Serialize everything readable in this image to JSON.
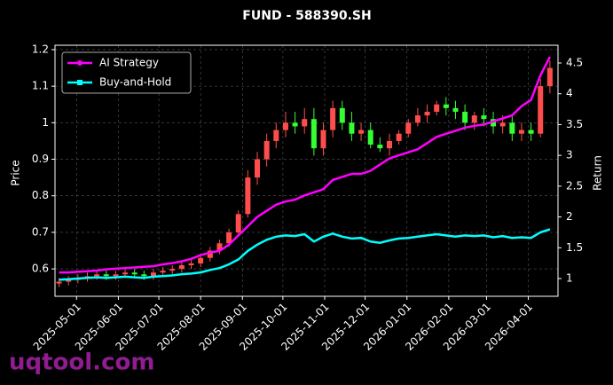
{
  "chart_data": {
    "type": "candlestick",
    "title": "FUND - 588390.SH",
    "ylabel": "Price",
    "y2label": "Return",
    "watermark": "uqtool.com",
    "x": [
      "2025-04-18",
      "2025-04-25",
      "2025-05-02",
      "2025-05-09",
      "2025-05-16",
      "2025-05-23",
      "2025-05-30",
      "2025-06-06",
      "2025-06-13",
      "2025-06-20",
      "2025-06-27",
      "2025-07-04",
      "2025-07-11",
      "2025-07-18",
      "2025-07-25",
      "2025-08-01",
      "2025-08-08",
      "2025-08-15",
      "2025-08-22",
      "2025-08-29",
      "2025-09-05",
      "2025-09-12",
      "2025-09-19",
      "2025-09-26",
      "2025-10-03",
      "2025-10-10",
      "2025-10-17",
      "2025-10-24",
      "2025-10-31",
      "2025-11-07",
      "2025-11-14",
      "2025-11-21",
      "2025-11-28",
      "2025-12-05",
      "2025-12-12",
      "2025-12-19",
      "2025-12-26",
      "2026-01-02",
      "2026-01-09",
      "2026-01-16",
      "2026-01-23",
      "2026-01-30",
      "2026-02-06",
      "2026-02-13",
      "2026-02-20",
      "2026-02-27",
      "2026-03-06",
      "2026-03-13",
      "2026-03-20",
      "2026-03-27",
      "2026-04-03",
      "2026-04-10",
      "2026-04-17"
    ],
    "open": [
      0.56,
      0.565,
      0.57,
      0.575,
      0.58,
      0.585,
      0.58,
      0.585,
      0.59,
      0.585,
      0.58,
      0.59,
      0.595,
      0.6,
      0.61,
      0.615,
      0.63,
      0.65,
      0.67,
      0.7,
      0.75,
      0.85,
      0.9,
      0.95,
      0.98,
      1.0,
      0.99,
      1.01,
      0.93,
      0.98,
      1.04,
      1.0,
      0.97,
      0.98,
      0.94,
      0.93,
      0.95,
      0.97,
      1.0,
      1.02,
      1.03,
      1.05,
      1.04,
      1.03,
      1.0,
      1.02,
      1.01,
      0.99,
      1.0,
      0.97,
      0.98,
      0.97,
      1.1
    ],
    "high": [
      0.575,
      0.58,
      0.585,
      0.59,
      0.595,
      0.595,
      0.595,
      0.6,
      0.6,
      0.595,
      0.6,
      0.605,
      0.61,
      0.62,
      0.625,
      0.64,
      0.66,
      0.68,
      0.71,
      0.76,
      0.87,
      0.92,
      0.97,
      1.0,
      1.03,
      1.03,
      1.04,
      1.04,
      1.0,
      1.06,
      1.06,
      1.03,
      1.0,
      1.0,
      0.96,
      0.97,
      0.98,
      1.01,
      1.04,
      1.05,
      1.06,
      1.07,
      1.06,
      1.05,
      1.03,
      1.04,
      1.03,
      1.02,
      1.02,
      1.0,
      1.0,
      1.12,
      1.17
    ],
    "low": [
      0.55,
      0.555,
      0.56,
      0.565,
      0.57,
      0.57,
      0.57,
      0.575,
      0.575,
      0.57,
      0.57,
      0.58,
      0.585,
      0.59,
      0.6,
      0.605,
      0.62,
      0.64,
      0.66,
      0.69,
      0.74,
      0.83,
      0.88,
      0.93,
      0.96,
      0.97,
      0.97,
      0.91,
      0.91,
      0.96,
      0.98,
      0.95,
      0.95,
      0.93,
      0.92,
      0.91,
      0.94,
      0.96,
      0.99,
      1.0,
      1.02,
      1.02,
      1.01,
      0.98,
      0.98,
      0.99,
      0.97,
      0.97,
      0.95,
      0.95,
      0.95,
      0.96,
      1.08
    ],
    "close": [
      0.565,
      0.57,
      0.575,
      0.58,
      0.585,
      0.58,
      0.585,
      0.59,
      0.585,
      0.58,
      0.59,
      0.595,
      0.6,
      0.61,
      0.615,
      0.63,
      0.65,
      0.67,
      0.7,
      0.75,
      0.85,
      0.9,
      0.95,
      0.98,
      1.0,
      0.99,
      1.01,
      0.93,
      0.98,
      1.04,
      1.0,
      0.97,
      0.98,
      0.94,
      0.93,
      0.95,
      0.97,
      1.0,
      1.02,
      1.03,
      1.05,
      1.04,
      1.03,
      1.0,
      1.02,
      1.01,
      0.99,
      1.0,
      0.97,
      0.98,
      0.97,
      1.1,
      1.15
    ],
    "up_color": "#ff4d4d",
    "down_color": "#33ff33",
    "series": [
      {
        "name": "AI Strategy",
        "color": "#ff00ff",
        "axis": "y2",
        "marker": "circle",
        "values": [
          1.1,
          1.1,
          1.11,
          1.12,
          1.13,
          1.15,
          1.16,
          1.17,
          1.18,
          1.19,
          1.2,
          1.23,
          1.25,
          1.28,
          1.32,
          1.38,
          1.42,
          1.45,
          1.55,
          1.7,
          1.85,
          2.0,
          2.1,
          2.2,
          2.25,
          2.28,
          2.35,
          2.4,
          2.45,
          2.6,
          2.65,
          2.7,
          2.7,
          2.75,
          2.85,
          2.95,
          3.0,
          3.05,
          3.1,
          3.2,
          3.3,
          3.35,
          3.4,
          3.45,
          3.48,
          3.5,
          3.55,
          3.6,
          3.65,
          3.8,
          3.9,
          4.3,
          4.6
        ]
      },
      {
        "name": "Buy-and-Hold",
        "color": "#00ffff",
        "axis": "y2",
        "marker": "square",
        "values": [
          0.98,
          0.99,
          1.0,
          1.01,
          1.02,
          1.01,
          1.02,
          1.03,
          1.02,
          1.01,
          1.03,
          1.04,
          1.05,
          1.07,
          1.08,
          1.1,
          1.14,
          1.17,
          1.23,
          1.31,
          1.45,
          1.55,
          1.63,
          1.68,
          1.7,
          1.69,
          1.72,
          1.6,
          1.68,
          1.73,
          1.68,
          1.65,
          1.66,
          1.6,
          1.58,
          1.62,
          1.65,
          1.66,
          1.68,
          1.7,
          1.72,
          1.7,
          1.68,
          1.7,
          1.69,
          1.7,
          1.67,
          1.69,
          1.66,
          1.67,
          1.66,
          1.75,
          1.8
        ]
      }
    ],
    "xlim": [
      "2025-04-15",
      "2026-04-23"
    ],
    "xticks": [
      "2025-05-01",
      "2025-06-01",
      "2025-07-01",
      "2025-08-01",
      "2025-09-01",
      "2025-10-01",
      "2025-11-01",
      "2025-12-01",
      "2026-01-01",
      "2026-02-01",
      "2026-03-01",
      "2026-04-01"
    ],
    "ylim": [
      0.525,
      1.212
    ],
    "yticks": [
      0.6,
      0.7,
      0.8,
      0.9,
      1.0,
      1.1,
      1.2
    ],
    "y2lim": [
      0.712,
      4.788
    ],
    "y2ticks": [
      1.0,
      1.5,
      2.0,
      2.5,
      3.0,
      3.5,
      4.0,
      4.5
    ],
    "grid": true,
    "legend": "upper-left"
  }
}
